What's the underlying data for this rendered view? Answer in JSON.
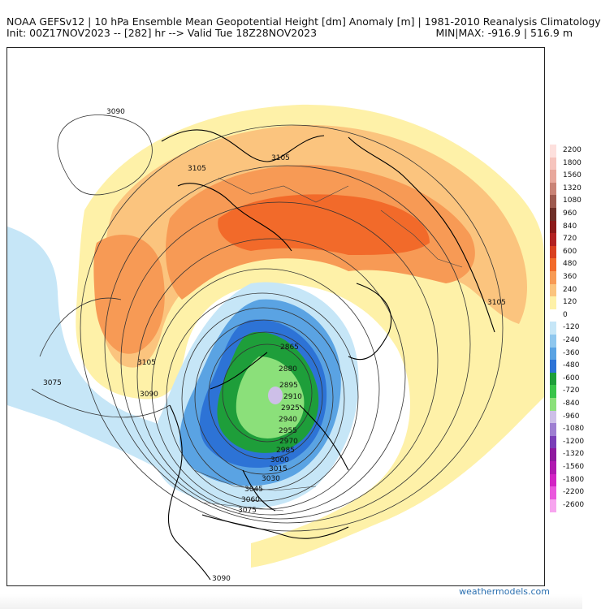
{
  "header": {
    "line1": "NOAA GEFSv12 | 10 hPa Ensemble Mean Geopotential Height [dm] Anomaly [m] | 1981-2010 Reanalysis Climatology",
    "line2": "Init: 00Z17NOV2023 -- [282] hr --> Valid Tue 18Z28NOV2023",
    "minmax": "MIN|MAX: -916.9 | 516.9 m"
  },
  "map": {
    "contour_labels": [
      "3090",
      "3105",
      "3105",
      "3105",
      "3105",
      "3075",
      "3090",
      "2865",
      "2880",
      "2895",
      "2910",
      "2925",
      "2940",
      "2955",
      "2970",
      "2985",
      "3000",
      "3015",
      "3030",
      "3045",
      "3060",
      "3075",
      "3090"
    ]
  },
  "colorbar": {
    "labels": [
      "2200",
      "1800",
      "1560",
      "1320",
      "1080",
      "960",
      "840",
      "720",
      "600",
      "480",
      "360",
      "240",
      "120",
      "0",
      "-120",
      "-240",
      "-360",
      "-480",
      "-600",
      "-720",
      "-840",
      "-960",
      "-1080",
      "-1200",
      "-1320",
      "-1560",
      "-1800",
      "-2200",
      "-2600"
    ],
    "colors": [
      "#fde0dd",
      "#f6c4bd",
      "#e8a89c",
      "#c98376",
      "#9e5a4f",
      "#6e2f28",
      "#8b1a1a",
      "#b22222",
      "#d94020",
      "#f26a2a",
      "#f79a55",
      "#fbc47e",
      "#fef1a8",
      "#ffffff",
      "#c6e6f7",
      "#8fc7ee",
      "#5aa3e3",
      "#2d73d6",
      "#1e9e3a",
      "#39c44a",
      "#8be07a",
      "#cdbfe8",
      "#9e7fd2",
      "#7a3fb8",
      "#8e1a9e",
      "#b01ab0",
      "#d224c4",
      "#ea58dd",
      "#f7a5ef"
    ]
  },
  "credit": "weathermodels.com"
}
